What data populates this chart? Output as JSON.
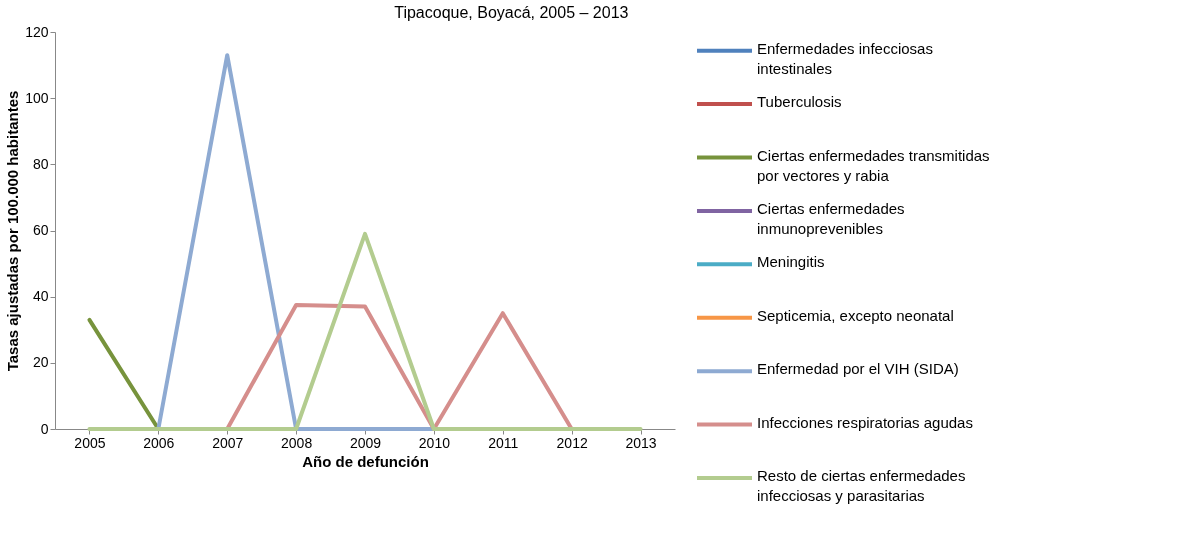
{
  "chart_data": {
    "type": "line",
    "title": "Tipacoque, Boyacá, 2005 – 2013",
    "xlabel": "Año de defunción",
    "ylabel": "Tasas ajustadas por 100.000 habitantes",
    "categories": [
      "2005",
      "2006",
      "2007",
      "2008",
      "2009",
      "2010",
      "2011",
      "2012",
      "2013"
    ],
    "ylim": [
      0,
      120
    ],
    "yticks": [
      0,
      20,
      40,
      60,
      80,
      100,
      120
    ],
    "grid": false,
    "legend": "right",
    "marker": "none",
    "line_style": "solid",
    "series": [
      {
        "name": "Enfermedades infecciosas intestinales",
        "color": "#4f81bd",
        "values": [
          null,
          null,
          null,
          null,
          null,
          null,
          null,
          null,
          null
        ]
      },
      {
        "name": "Tuberculosis",
        "color": "#c0504d",
        "values": [
          null,
          null,
          null,
          null,
          null,
          null,
          null,
          null,
          null
        ]
      },
      {
        "name": "Ciertas enfermedades transmitidas por vectores y rabia",
        "color": "#77933c",
        "values": [
          33,
          0,
          null,
          null,
          null,
          null,
          null,
          null,
          null
        ]
      },
      {
        "name": "Ciertas enfermedades inmunoprevenibles",
        "color": "#8064a2",
        "values": [
          null,
          null,
          null,
          null,
          null,
          null,
          null,
          null,
          null
        ]
      },
      {
        "name": "Meningitis",
        "color": "#4bacc6",
        "values": [
          null,
          null,
          null,
          null,
          null,
          null,
          null,
          null,
          null
        ]
      },
      {
        "name": "Septicemia, excepto neonatal",
        "color": "#f79646",
        "values": [
          null,
          null,
          null,
          null,
          null,
          null,
          null,
          null,
          null
        ]
      },
      {
        "name": "Enfermedad por el VIH (SIDA)",
        "color": "#8eaad2",
        "values": [
          null,
          0,
          113,
          0,
          0,
          0,
          null,
          null,
          null
        ]
      },
      {
        "name": "Infecciones respiratorias agudas",
        "color": "#d58e8c",
        "values": [
          null,
          null,
          0,
          37.5,
          37,
          0,
          35,
          0,
          null
        ]
      },
      {
        "name": "Resto de ciertas enfermedades infecciosas y parasitarias",
        "color": "#b3cc8f",
        "values": [
          0,
          0,
          0,
          0,
          59,
          0,
          0,
          0,
          0
        ]
      }
    ]
  }
}
